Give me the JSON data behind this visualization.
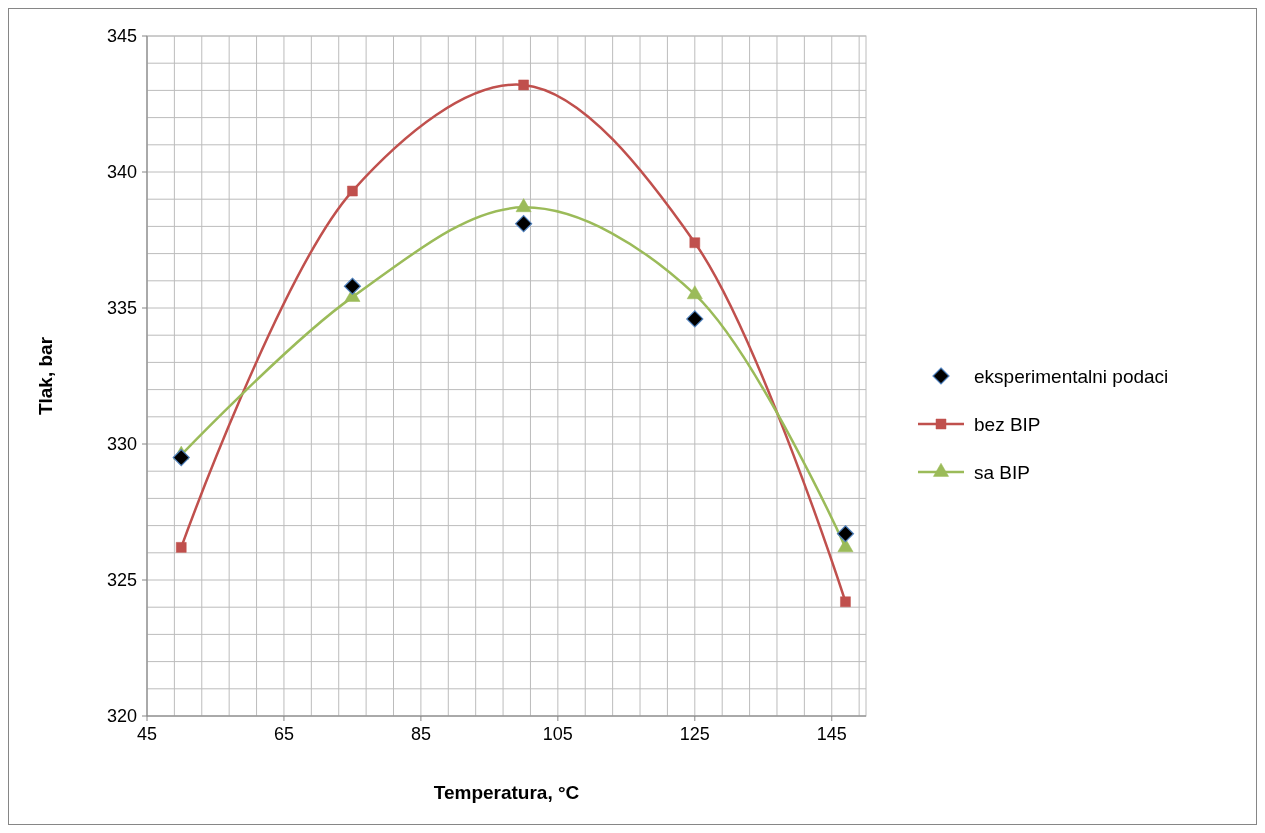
{
  "chart_data": {
    "type": "line",
    "xlabel": "Temperatura, °C",
    "ylabel": "Tlak, bar",
    "xlim": [
      45,
      150
    ],
    "ylim": [
      320,
      345
    ],
    "xticks": [
      45,
      {
        "value": 49,
        "label": null
      },
      {
        "value": 53,
        "label": null
      },
      {
        "value": 57,
        "label": null
      },
      {
        "value": 61,
        "label": null
      },
      65,
      {
        "value": 69,
        "label": null
      },
      {
        "value": 73,
        "label": null
      },
      {
        "value": 77,
        "label": null
      },
      {
        "value": 81,
        "label": null
      },
      85,
      {
        "value": 89,
        "label": null
      },
      {
        "value": 93,
        "label": null
      },
      {
        "value": 97,
        "label": null
      },
      {
        "value": 101,
        "label": null
      },
      105,
      {
        "value": 109,
        "label": null
      },
      {
        "value": 113,
        "label": null
      },
      {
        "value": 117,
        "label": null
      },
      {
        "value": 121,
        "label": null
      },
      125,
      {
        "value": 129,
        "label": null
      },
      {
        "value": 133,
        "label": null
      },
      {
        "value": 137,
        "label": null
      },
      {
        "value": 141,
        "label": null
      },
      145,
      {
        "value": 149,
        "label": null
      }
    ],
    "yticks": [
      320,
      {
        "value": 321,
        "label": null
      },
      {
        "value": 322,
        "label": null
      },
      {
        "value": 323,
        "label": null
      },
      {
        "value": 324,
        "label": null
      },
      325,
      {
        "value": 326,
        "label": null
      },
      {
        "value": 327,
        "label": null
      },
      {
        "value": 328,
        "label": null
      },
      {
        "value": 329,
        "label": null
      },
      330,
      {
        "value": 331,
        "label": null
      },
      {
        "value": 332,
        "label": null
      },
      {
        "value": 333,
        "label": null
      },
      {
        "value": 334,
        "label": null
      },
      335,
      {
        "value": 336,
        "label": null
      },
      {
        "value": 337,
        "label": null
      },
      {
        "value": 338,
        "label": null
      },
      {
        "value": 339,
        "label": null
      },
      340,
      {
        "value": 341,
        "label": null
      },
      {
        "value": 342,
        "label": null
      },
      {
        "value": 343,
        "label": null
      },
      {
        "value": 344,
        "label": null
      },
      345
    ],
    "grid": true,
    "legend": "right",
    "line_style": "solid",
    "x": [
      50,
      75,
      100,
      125,
      147
    ],
    "series": [
      {
        "name": "eksperimentalni podaci",
        "type": "scatter",
        "marker": "diamond",
        "color": "#000000",
        "values": [
          329.5,
          335.8,
          338.1,
          334.6,
          326.7
        ]
      },
      {
        "name": "bez BIP",
        "marker": "square",
        "color": "#c0504d",
        "values": [
          326.2,
          339.3,
          343.2,
          337.4,
          324.2
        ]
      },
      {
        "name": "sa BIP",
        "marker": "triangle",
        "color": "#9bbb59",
        "values": [
          329.6,
          335.4,
          338.7,
          335.5,
          326.2
        ]
      }
    ]
  }
}
